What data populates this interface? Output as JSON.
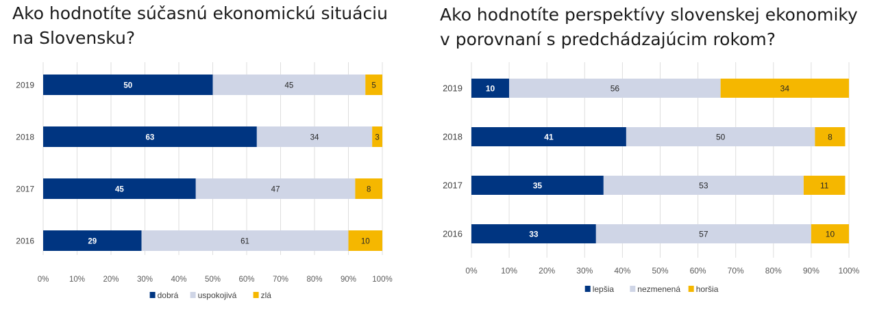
{
  "chart_data": [
    {
      "type": "bar",
      "orientation": "horizontal",
      "stacked": true,
      "title_lines": [
        "Ako hodnotíte súčasnú ekonomickú situáciu",
        "na Slovensku?"
      ],
      "categories": [
        "2019",
        "2018",
        "2017",
        "2016"
      ],
      "series": [
        {
          "name": "dobrá",
          "color": "#003581",
          "values": [
            50,
            63,
            45,
            29
          ]
        },
        {
          "name": "uspokojivá",
          "color": "#cfd5e6",
          "values": [
            45,
            34,
            47,
            61
          ]
        },
        {
          "name": "zlá",
          "color": "#f5b700",
          "values": [
            5,
            3,
            8,
            10
          ]
        }
      ],
      "xlim": [
        0,
        100
      ],
      "x_ticks": [
        "0%",
        "10%",
        "20%",
        "30%",
        "40%",
        "50%",
        "60%",
        "70%",
        "80%",
        "90%",
        "100%"
      ],
      "grid": "vertical",
      "legend_position": "bottom"
    },
    {
      "type": "bar",
      "orientation": "horizontal",
      "stacked": true,
      "title_lines": [
        "Ako hodnotíte perspektívy slovenskej ekonomiky",
        "v porovnaní s predchádzajúcim rokom?"
      ],
      "categories": [
        "2019",
        "2018",
        "2017",
        "2016"
      ],
      "series": [
        {
          "name": "lepšia",
          "color": "#003581",
          "values": [
            10,
            41,
            35,
            33
          ]
        },
        {
          "name": "nezmenená",
          "color": "#cfd5e6",
          "values": [
            56,
            50,
            53,
            57
          ]
        },
        {
          "name": "horšia",
          "color": "#f5b700",
          "values": [
            34,
            8,
            11,
            10
          ]
        }
      ],
      "xlim": [
        0,
        100
      ],
      "x_ticks": [
        "0%",
        "10%",
        "20%",
        "30%",
        "40%",
        "50%",
        "60%",
        "70%",
        "80%",
        "90%",
        "100%"
      ],
      "grid": "vertical",
      "legend_position": "bottom"
    }
  ]
}
